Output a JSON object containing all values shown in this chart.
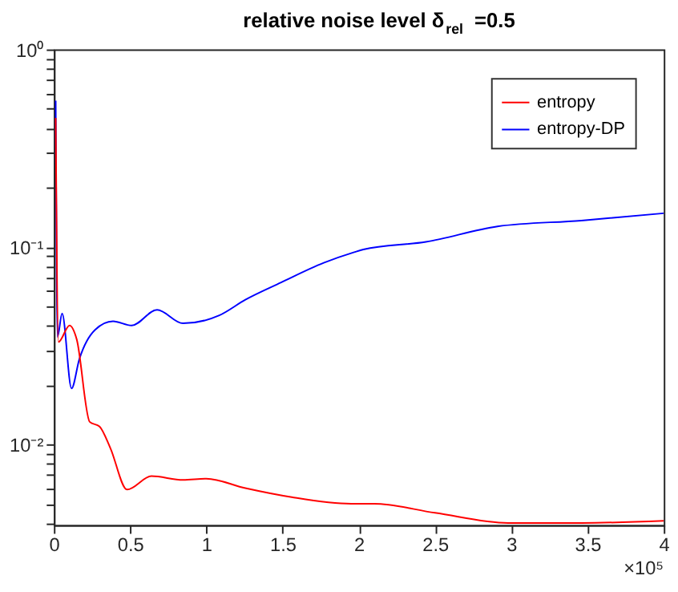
{
  "chart_data": {
    "type": "line",
    "title": "relative noise level δ$_{rel}$ =0.5",
    "annotations": [
      "×10⁵"
    ],
    "xlim": [
      0,
      4
    ],
    "xticks": [
      0,
      0.5,
      1,
      1.5,
      2,
      2.5,
      3,
      3.5,
      4
    ],
    "ylim": [
      0.0039,
      1
    ],
    "log": true,
    "yticks": [
      {
        "value": 0.01,
        "label": "10⁻²"
      },
      {
        "value": 0.1,
        "label": "10⁻¹"
      },
      {
        "value": 1,
        "label": "10⁰"
      },
      {
        "value": 0.004,
        "label": null
      },
      {
        "value": 0.005,
        "label": null
      },
      {
        "value": 0.006,
        "label": null
      },
      {
        "value": 0.007,
        "label": null
      },
      {
        "value": 0.008,
        "label": null
      },
      {
        "value": 0.009,
        "label": null
      },
      {
        "value": 0.02,
        "label": null
      },
      {
        "value": 0.03,
        "label": null
      },
      {
        "value": 0.04,
        "label": null
      },
      {
        "value": 0.05,
        "label": null
      },
      {
        "value": 0.06,
        "label": null
      },
      {
        "value": 0.07,
        "label": null
      },
      {
        "value": 0.08,
        "label": null
      },
      {
        "value": 0.09,
        "label": null
      },
      {
        "value": 0.2,
        "label": null
      },
      {
        "value": 0.3,
        "label": null
      },
      {
        "value": 0.4,
        "label": null
      },
      {
        "value": 0.5,
        "label": null
      },
      {
        "value": 0.6,
        "label": null
      },
      {
        "value": 0.7,
        "label": null
      },
      {
        "value": 0.8,
        "label": null
      },
      {
        "value": 0.9,
        "label": null
      }
    ],
    "grid": false,
    "legend": "top right",
    "marker": "none",
    "line_style": "solid",
    "series": [
      {
        "name": "entropy",
        "color": "#ff0000",
        "x": [
          0.012,
          0.03,
          0.103,
          0.15,
          0.235,
          0.3,
          0.37,
          0.48,
          0.64,
          0.847,
          1.0,
          1.256,
          1.56,
          1.95,
          2.1,
          2.5,
          2.98,
          3.46,
          4.0
        ],
        "values": [
          0.45,
          0.033,
          0.04,
          0.034,
          0.013,
          0.0123,
          0.0096,
          0.0059,
          0.0069,
          0.0066,
          0.0067,
          0.006,
          0.0054,
          0.005,
          0.005,
          0.0045,
          0.004,
          0.004,
          0.0041
        ]
      },
      {
        "name": "entropy-DP",
        "color": "#0000ff",
        "x": [
          0.012,
          0.024,
          0.054,
          0.116,
          0.167,
          0.27,
          0.388,
          0.51,
          0.677,
          0.847,
          1.085,
          1.256,
          1.49,
          1.77,
          1.97,
          2.03,
          2.44,
          2.91,
          3.46,
          4.0
        ],
        "values": [
          0.55,
          0.035,
          0.046,
          0.0192,
          0.027,
          0.038,
          0.042,
          0.04,
          0.048,
          0.041,
          0.045,
          0.054,
          0.066,
          0.083,
          0.094,
          0.097,
          0.106,
          0.127,
          0.136,
          0.148
        ]
      }
    ]
  }
}
